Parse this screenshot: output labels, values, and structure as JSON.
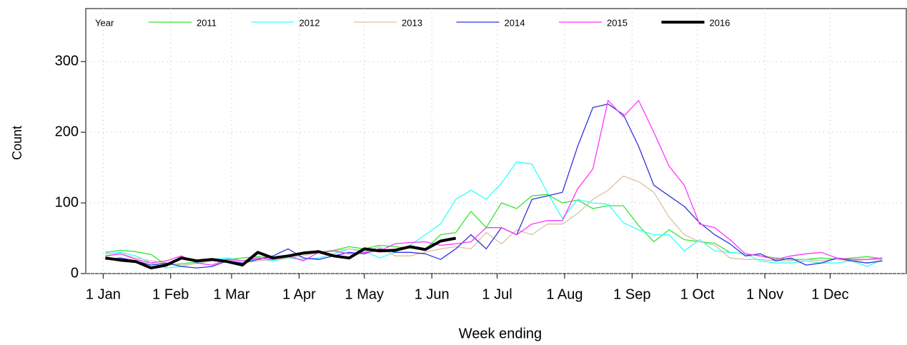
{
  "chart_data": {
    "type": "line",
    "legend_title": "Year",
    "legend_position": "top",
    "x_label": "Week ending",
    "y_label": "Count",
    "x": [
      2,
      9,
      16,
      23,
      30,
      37,
      44,
      51,
      58,
      65,
      72,
      79,
      86,
      93,
      100,
      107,
      114,
      121,
      128,
      135,
      142,
      149,
      156,
      163,
      170,
      177,
      184,
      191,
      198,
      205,
      212,
      219,
      226,
      233,
      240,
      247,
      254,
      261,
      268,
      275,
      282,
      289,
      296,
      303,
      310,
      317,
      324,
      331,
      338,
      345,
      352,
      359
    ],
    "xlim": [
      -7,
      370
    ],
    "xticks": [
      {
        "value": 1,
        "label": "1 Jan"
      },
      {
        "value": 32,
        "label": "1 Feb"
      },
      {
        "value": 60,
        "label": "1 Mar"
      },
      {
        "value": 91,
        "label": "1 Apr"
      },
      {
        "value": 121,
        "label": "1 May"
      },
      {
        "value": 152,
        "label": "1 Jun"
      },
      {
        "value": 182,
        "label": "1 Jul"
      },
      {
        "value": 213,
        "label": "1 Aug"
      },
      {
        "value": 244,
        "label": "1 Sep"
      },
      {
        "value": 274,
        "label": "1 Oct"
      },
      {
        "value": 305,
        "label": "1 Nov"
      },
      {
        "value": 335,
        "label": "1 Dec"
      }
    ],
    "ylim": [
      0,
      375
    ],
    "yticks": [
      0,
      100,
      200,
      300
    ],
    "grid": true,
    "series": [
      {
        "name": "2011",
        "color": "#33e533",
        "width": 1.3,
        "values": [
          30,
          33,
          31,
          27,
          12,
          14,
          16,
          18,
          20,
          22,
          24,
          22,
          26,
          28,
          30,
          33,
          38,
          35,
          40,
          38,
          36,
          34,
          55,
          58,
          88,
          65,
          100,
          92,
          110,
          112,
          100,
          104,
          92,
          96,
          96,
          68,
          45,
          62,
          48,
          45,
          43,
          30,
          28,
          25,
          22,
          20,
          20,
          22,
          20,
          22,
          24,
          21
        ]
      },
      {
        "name": "2012",
        "color": "#33ffff",
        "width": 1.3,
        "values": [
          28,
          30,
          25,
          15,
          8,
          10,
          15,
          20,
          22,
          18,
          20,
          18,
          22,
          20,
          22,
          28,
          35,
          32,
          22,
          30,
          40,
          55,
          70,
          105,
          118,
          105,
          128,
          158,
          155,
          115,
          78,
          105,
          100,
          98,
          72,
          62,
          55,
          55,
          32,
          48,
          32,
          30,
          28,
          18,
          15,
          15,
          18,
          15,
          15,
          18,
          10,
          20
        ]
      },
      {
        "name": "2013",
        "color": "#d9c2a3",
        "width": 1.3,
        "values": [
          25,
          28,
          22,
          18,
          15,
          12,
          14,
          18,
          16,
          15,
          18,
          20,
          22,
          25,
          30,
          32,
          35,
          30,
          38,
          25,
          25,
          30,
          35,
          38,
          35,
          58,
          42,
          62,
          55,
          70,
          70,
          85,
          105,
          118,
          138,
          130,
          115,
          80,
          55,
          45,
          40,
          22,
          20,
          20,
          18,
          18,
          20,
          18,
          20,
          18,
          20,
          20
        ]
      },
      {
        "name": "2014",
        "color": "#3333dd",
        "width": 1.3,
        "values": [
          20,
          22,
          18,
          12,
          15,
          10,
          8,
          10,
          18,
          15,
          20,
          25,
          35,
          22,
          20,
          25,
          30,
          28,
          35,
          30,
          30,
          28,
          20,
          35,
          55,
          35,
          65,
          55,
          105,
          110,
          115,
          180,
          235,
          240,
          225,
          180,
          125,
          110,
          95,
          72,
          55,
          42,
          25,
          28,
          18,
          22,
          12,
          15,
          22,
          18,
          15,
          18
        ]
      },
      {
        "name": "2015",
        "color": "#ff33ff",
        "width": 1.3,
        "values": [
          25,
          28,
          20,
          15,
          18,
          25,
          15,
          12,
          20,
          18,
          22,
          20,
          25,
          18,
          30,
          32,
          28,
          30,
          32,
          42,
          44,
          45,
          40,
          42,
          45,
          65,
          65,
          55,
          70,
          75,
          75,
          120,
          148,
          245,
          222,
          245,
          200,
          152,
          125,
          70,
          65,
          48,
          28,
          25,
          20,
          25,
          28,
          30,
          22,
          20,
          20,
          22
        ]
      },
      {
        "name": "2016",
        "color": "#000000",
        "width": 4,
        "values": [
          22,
          19,
          17,
          8,
          12,
          22,
          18,
          20,
          17,
          12,
          30,
          22,
          25,
          29,
          31,
          25,
          22,
          35,
          32,
          33,
          38,
          34,
          46,
          50,
          null,
          null,
          null,
          null,
          null,
          null,
          null,
          null,
          null,
          null,
          null,
          null,
          null,
          null,
          null,
          null,
          null,
          null,
          null,
          null,
          null,
          null,
          null,
          null,
          null,
          null,
          null,
          null
        ]
      }
    ]
  }
}
